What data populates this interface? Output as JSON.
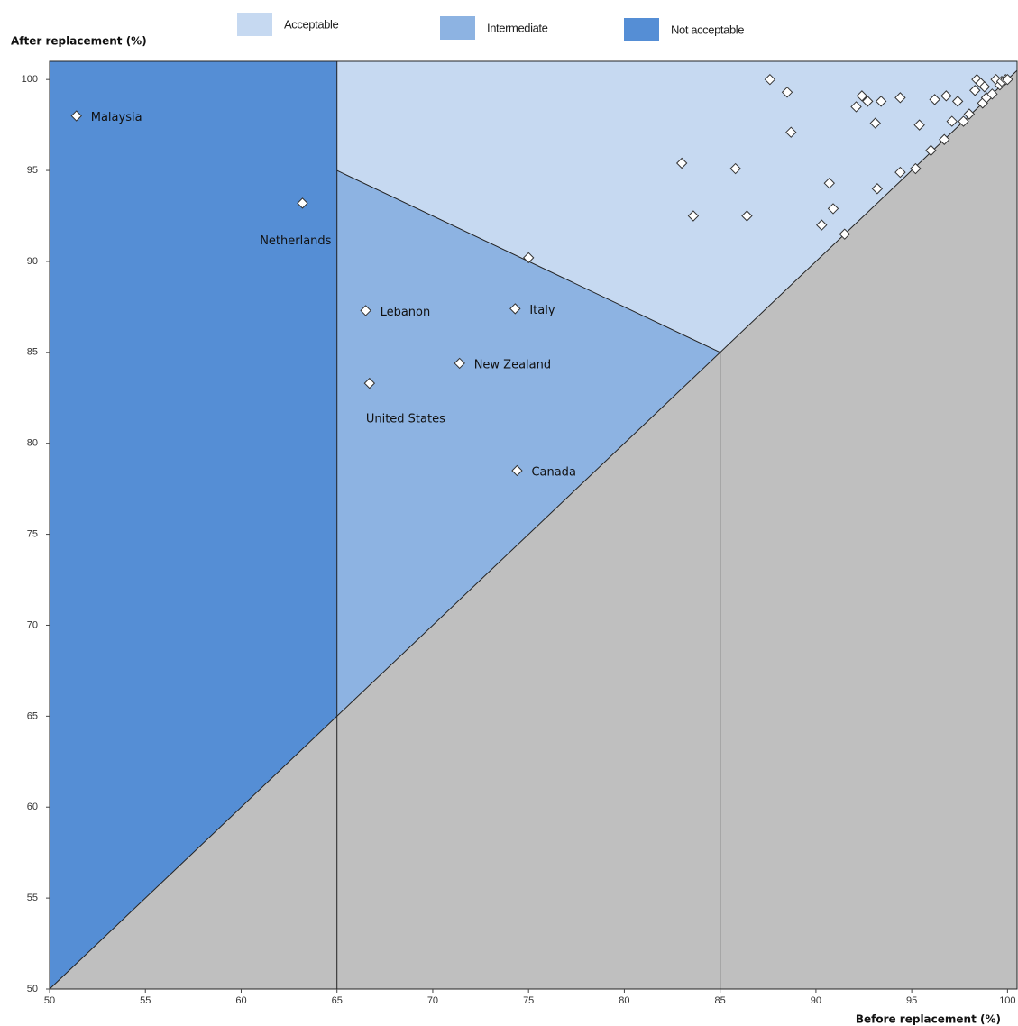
{
  "chart_data": {
    "type": "scatter",
    "y_label": "After replacement (%)",
    "x_label": "Before replacement (%)",
    "xlim": [
      50,
      100.5
    ],
    "ylim": [
      50,
      101
    ],
    "xticks": [
      50,
      55,
      60,
      65,
      70,
      75,
      80,
      85,
      90,
      95,
      100
    ],
    "yticks": [
      50,
      55,
      60,
      65,
      70,
      75,
      80,
      85,
      90,
      95,
      100
    ],
    "regions": [
      {
        "color": "#bfbfbf",
        "polygon": [
          [
            50,
            50
          ],
          [
            100.5,
            100.5
          ],
          [
            100.5,
            50
          ]
        ]
      },
      {
        "name": "Acceptable",
        "color": "#c6d9f1",
        "polygon": [
          [
            65,
            95
          ],
          [
            85,
            85
          ],
          [
            100.5,
            100.5
          ],
          [
            100.5,
            101
          ],
          [
            65,
            101
          ]
        ]
      },
      {
        "name": "Intermediate",
        "color": "#8db3e2",
        "polygon": [
          [
            65,
            65
          ],
          [
            85,
            85
          ],
          [
            65,
            95
          ]
        ]
      },
      {
        "name": "Not acceptable",
        "color": "#558ed5",
        "polygon": [
          [
            50,
            50
          ],
          [
            65,
            65
          ],
          [
            65,
            101
          ],
          [
            50,
            101
          ]
        ]
      }
    ],
    "lines": [
      [
        [
          50,
          50
        ],
        [
          100.5,
          100.5
        ]
      ],
      [
        [
          65,
          50
        ],
        [
          65,
          101
        ]
      ],
      [
        [
          85,
          50
        ],
        [
          85,
          85
        ]
      ],
      [
        [
          65,
          95
        ],
        [
          85,
          85
        ]
      ]
    ],
    "marker_color": "#ffffff",
    "x": [
      51.4,
      63.2,
      66.5,
      74.3,
      71.4,
      66.7,
      74.4,
      75.0,
      83.0,
      83.6,
      85.8,
      86.4,
      87.6,
      88.5,
      88.7,
      90.7,
      90.9,
      90.3,
      91.5,
      92.1,
      92.4,
      92.7,
      93.4,
      93.1,
      93.2,
      94.4,
      94.4,
      95.2,
      95.4,
      96.2,
      96.0,
      96.8,
      96.7,
      97.1,
      97.4,
      97.7,
      98.0,
      98.3,
      98.4,
      98.6,
      98.7,
      98.9,
      99.2,
      99.4,
      99.6,
      99.7,
      99.9,
      100.0,
      98.8
    ],
    "values": [
      98.0,
      93.2,
      87.3,
      87.4,
      84.4,
      83.3,
      78.5,
      90.2,
      95.4,
      92.5,
      95.1,
      92.5,
      100.0,
      99.3,
      97.1,
      94.3,
      92.9,
      92.0,
      91.5,
      98.5,
      99.1,
      98.8,
      98.8,
      97.6,
      94.0,
      99.0,
      94.9,
      95.1,
      97.5,
      98.9,
      96.1,
      99.1,
      96.7,
      97.7,
      98.8,
      97.7,
      98.1,
      99.4,
      100.0,
      99.8,
      98.7,
      99.0,
      99.2,
      100.0,
      99.7,
      99.9,
      100.0,
      100.0,
      99.6
    ],
    "labels": [
      "Malaysia",
      "Netherlands",
      "Lebanon",
      "Italy",
      "New Zealand",
      "United States",
      "Canada",
      null,
      null,
      null,
      null,
      null,
      null,
      null,
      null,
      null,
      null,
      null,
      null,
      null,
      null,
      null,
      null,
      null,
      null,
      null,
      null,
      null,
      null,
      null,
      null,
      null,
      null,
      null,
      null,
      null,
      null,
      null,
      null,
      null,
      null,
      null,
      null,
      null,
      null,
      null,
      null,
      null,
      null
    ]
  }
}
